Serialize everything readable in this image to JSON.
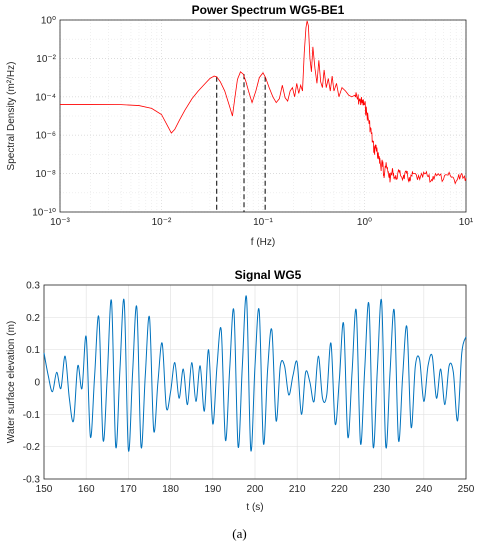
{
  "panel_label": "(a)",
  "chart_data": [
    {
      "type": "line",
      "title": "Power Spectrum WG5-BE1",
      "xlabel": "f (Hz)",
      "ylabel": "Spectral Density (m²/Hz)",
      "xscale": "log",
      "yscale": "log",
      "xlim": [
        0.001,
        10
      ],
      "ylim": [
        1e-10,
        1
      ],
      "x_ticks": [
        0.001,
        0.01,
        0.1,
        1,
        10
      ],
      "x_tick_labels": [
        "10⁻³",
        "10⁻²",
        "10⁻¹",
        "10⁰",
        "10¹"
      ],
      "y_ticks": [
        1e-10,
        1e-08,
        1e-06,
        0.0001,
        0.01,
        1
      ],
      "y_tick_labels": [
        "10⁻¹⁰",
        "10⁻⁸",
        "10⁻⁶",
        "10⁻⁴",
        "10⁻²",
        "10⁰"
      ],
      "grid": true,
      "line_color": "#ff0000",
      "series": [
        {
          "x": [
            0.001,
            0.002,
            0.004,
            0.006,
            0.008,
            0.01,
            0.0115,
            0.0125,
            0.0135,
            0.015,
            0.017,
            0.02,
            0.023,
            0.027,
            0.03,
            0.033,
            0.035,
            0.038,
            0.042,
            0.047,
            0.05,
            0.053,
            0.056,
            0.06,
            0.064,
            0.068,
            0.072,
            0.078,
            0.085,
            0.092,
            0.1,
            0.106,
            0.115,
            0.125,
            0.135,
            0.145,
            0.155,
            0.165,
            0.175,
            0.185,
            0.195,
            0.205,
            0.215,
            0.225,
            0.235,
            0.245,
            0.255,
            0.265,
            0.272,
            0.28,
            0.29,
            0.3,
            0.31,
            0.325,
            0.34,
            0.355,
            0.37,
            0.385,
            0.4,
            0.42,
            0.44,
            0.46,
            0.48,
            0.5,
            0.53,
            0.56,
            0.6,
            0.65,
            0.7,
            0.75,
            0.8,
            0.85,
            0.9,
            0.95,
            1.0,
            1.05,
            1.1,
            1.15,
            1.2,
            1.25,
            1.3,
            1.35,
            1.4,
            1.45,
            1.5,
            1.55,
            1.6,
            1.7,
            1.8,
            1.9,
            2.0,
            2.2,
            2.4,
            2.6,
            2.8,
            3.0,
            3.5,
            4.0,
            4.5,
            5.0,
            6.0,
            7.0,
            8.0,
            9.0,
            10.0
          ],
          "y": [
            4e-05,
            4e-05,
            3.9e-05,
            3.5e-05,
            2.5e-05,
            1.2e-05,
            3e-06,
            1.3e-06,
            2e-06,
            6e-06,
            2e-05,
            8e-05,
            0.0002,
            0.0005,
            0.0009,
            0.0012,
            0.0011,
            0.0006,
            0.0002,
            3e-05,
            1e-05,
            0.0001,
            0.0008,
            0.002,
            0.0015,
            0.0006,
            0.0002,
            5e-05,
            0.0002,
            0.001,
            0.0018,
            0.001,
            0.0003,
            0.0001,
            5e-05,
            8e-05,
            0.0004,
            9e-05,
            6e-05,
            0.0002,
            0.0003,
            0.0001,
            0.0005,
            0.00015,
            0.0004,
            0.0002,
            0.02,
            0.4,
            0.9,
            0.5,
            0.01,
            0.002,
            0.04,
            0.003,
            0.0005,
            0.008,
            0.0006,
            0.0003,
            0.0025,
            0.0003,
            0.0009,
            0.0002,
            0.0012,
            0.0002,
            0.0005,
            0.0001,
            0.0003,
            0.0002,
            0.00012,
            0.0001,
            0.00012,
            8e-05,
            6e-05,
            5e-05,
            4e-05,
            1.5e-05,
            6e-06,
            2e-06,
            5e-07,
            1.5e-07,
            3e-07,
            6e-08,
            8e-08,
            2e-08,
            4e-08,
            1e-08,
            2.5e-08,
            1.2e-08,
            6e-09,
            1.5e-08,
            5e-09,
            1.2e-08,
            6e-09,
            1e-08,
            4e-09,
            1e-08,
            5e-09,
            1e-08,
            4e-09,
            1e-08,
            5e-09,
            8e-09,
            4e-09,
            1e-08,
            6e-09
          ]
        }
      ],
      "vlines": [
        {
          "x": 0.035,
          "y_top": 0.0011
        },
        {
          "x": 0.065,
          "y_top": 0.0015
        },
        {
          "x": 0.105,
          "y_top": 0.0011
        }
      ]
    },
    {
      "type": "line",
      "title": "Signal WG5",
      "xlabel": "t (s)",
      "ylabel": "Water surface elevation (m)",
      "xlim": [
        150,
        250
      ],
      "ylim": [
        -0.3,
        0.3
      ],
      "x_ticks": [
        150,
        160,
        170,
        180,
        190,
        200,
        210,
        220,
        230,
        240,
        250
      ],
      "y_ticks": [
        -0.3,
        -0.2,
        -0.1,
        0,
        0.1,
        0.2,
        0.3
      ],
      "y_tick_labels": [
        "-0.3",
        "-0.2",
        "-0.1",
        "0",
        "0.1",
        "0.2",
        "0.3"
      ],
      "grid": true,
      "line_color": "#0072bd",
      "series": [
        {
          "x": [
            150,
            151,
            152,
            153,
            154,
            155,
            156,
            157,
            158,
            159,
            160,
            161,
            162,
            163,
            164,
            165,
            166,
            167,
            168,
            169,
            170,
            171,
            172,
            173,
            174,
            175,
            176,
            177,
            178,
            179,
            180,
            181,
            182,
            183,
            184,
            185,
            186,
            187,
            188,
            189,
            190,
            191,
            192,
            193,
            194,
            195,
            196,
            197,
            198,
            199,
            200,
            201,
            202,
            203,
            204,
            205,
            206,
            207,
            208,
            209,
            210,
            211,
            212,
            213,
            214,
            215,
            216,
            217,
            218,
            219,
            220,
            221,
            222,
            223,
            224,
            225,
            226,
            227,
            228,
            229,
            230,
            231,
            232,
            233,
            234,
            235,
            236,
            237,
            238,
            239,
            240,
            241,
            242,
            243,
            244,
            245,
            246,
            247,
            248,
            249,
            250
          ],
          "y": [
            0.09,
            0.02,
            -0.03,
            0.03,
            -0.02,
            0.08,
            -0.05,
            -0.12,
            0.05,
            -0.02,
            0.14,
            -0.17,
            0.02,
            0.2,
            -0.18,
            0.02,
            0.25,
            -0.2,
            0.04,
            0.25,
            -0.21,
            0.03,
            0.23,
            -0.2,
            0.02,
            0.2,
            -0.15,
            0.0,
            0.12,
            -0.08,
            -0.03,
            0.06,
            -0.05,
            0.04,
            -0.07,
            0.06,
            -0.06,
            0.05,
            -0.09,
            0.1,
            -0.13,
            0.05,
            0.16,
            -0.18,
            0.04,
            0.22,
            -0.2,
            0.05,
            0.26,
            -0.21,
            0.05,
            0.22,
            -0.19,
            0.04,
            0.16,
            -0.12,
            0.05,
            0.05,
            -0.04,
            0.02,
            0.06,
            -0.1,
            0.03,
            0.0,
            -0.06,
            0.08,
            -0.05,
            -0.04,
            0.12,
            -0.13,
            0.01,
            0.18,
            -0.17,
            0.03,
            0.22,
            -0.19,
            0.04,
            0.24,
            -0.2,
            0.04,
            0.25,
            -0.2,
            0.03,
            0.22,
            -0.18,
            0.02,
            0.17,
            -0.14,
            0.05,
            0.07,
            -0.06,
            0.05,
            0.08,
            -0.05,
            0.04,
            -0.07,
            0.05,
            0.03,
            -0.12,
            0.09,
            0.14
          ]
        }
      ]
    }
  ]
}
